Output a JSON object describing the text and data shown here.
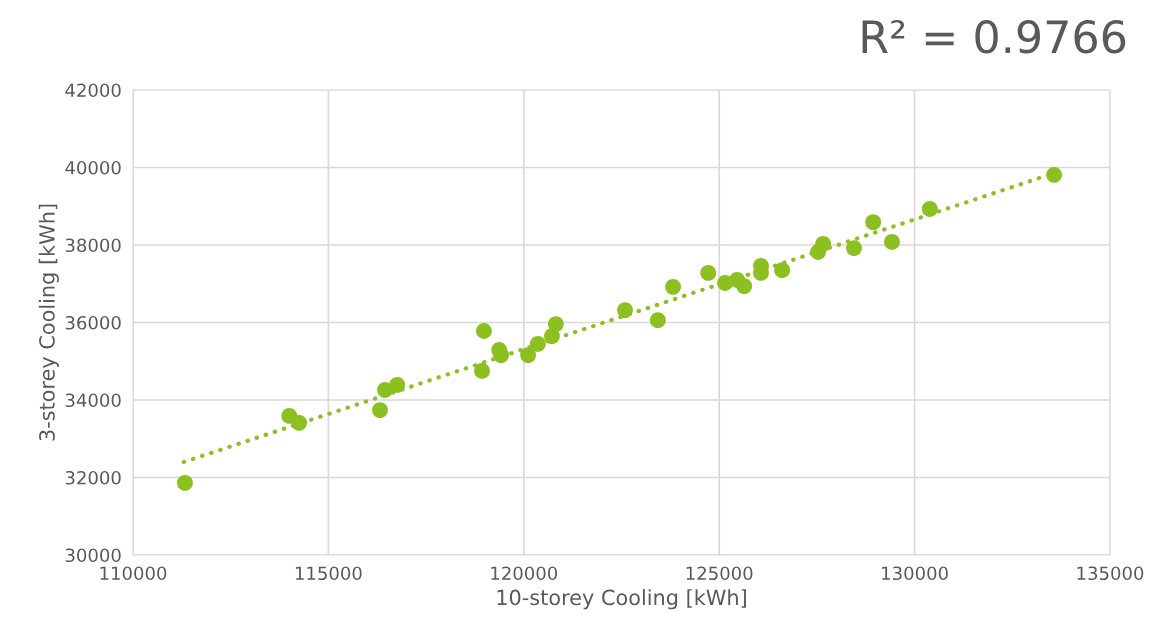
{
  "chart_data": {
    "type": "scatter",
    "xlabel": "10-storey Cooling [kWh]",
    "ylabel": "3-storey Cooling [kWh]",
    "annotations": [
      "R² = 0.9766"
    ],
    "xlim": [
      110000,
      135000
    ],
    "xticks": [
      110000,
      115000,
      120000,
      125000,
      130000,
      135000
    ],
    "ylim": [
      30000,
      42000
    ],
    "yticks": [
      30000,
      32000,
      34000,
      36000,
      38000,
      40000,
      42000
    ],
    "grid": true,
    "legend": false,
    "series": [
      {
        "color": "#8cc021",
        "marker": "circle",
        "x": [
          111330,
          114000,
          114250,
          116320,
          116450,
          116760,
          118930,
          118980,
          119370,
          119420,
          120110,
          120360,
          120720,
          120820,
          122590,
          123430,
          123820,
          124720,
          125150,
          125460,
          125640,
          126070,
          126070,
          126610,
          127530,
          127660,
          128450,
          128940,
          129420,
          130390,
          133570
        ],
        "values": [
          31860,
          33590,
          33410,
          33740,
          34260,
          34390,
          34750,
          35780,
          35290,
          35160,
          35160,
          35450,
          35650,
          35960,
          36320,
          36060,
          36920,
          37280,
          37020,
          37100,
          36940,
          37460,
          37280,
          37350,
          37820,
          38030,
          37920,
          38590,
          38080,
          38930,
          39810
        ]
      },
      {
        "type": "line",
        "color": "#8cc021",
        "line_style": "dotted",
        "marker": "none",
        "x": [
          111300,
          133200
        ],
        "values": [
          32400,
          39730
        ]
      }
    ]
  }
}
